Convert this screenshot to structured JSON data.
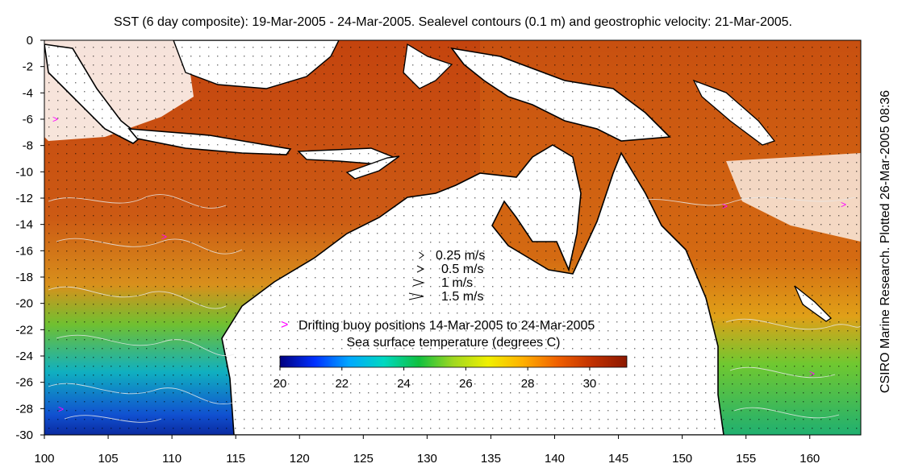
{
  "title": "SST (6 day composite): 19-Mar-2005 - 24-Mar-2005. Sealevel contours (0.1 m) and geostrophic velocity: 21-Mar-2005.",
  "side_credit": "CSIRO Marine Research. Plotted 26-Mar-2005 08:36",
  "map": {
    "lon_range": [
      100,
      164
    ],
    "lat_range": [
      -30,
      0
    ],
    "x_ticks": [
      100,
      105,
      110,
      115,
      120,
      125,
      130,
      135,
      140,
      145,
      150,
      155,
      160
    ],
    "y_ticks": [
      0,
      -2,
      -4,
      -6,
      -8,
      -10,
      -12,
      -14,
      -16,
      -18,
      -20,
      -22,
      -24,
      -26,
      -28,
      -30
    ]
  },
  "velocity_legend": [
    {
      "label": "0.25 m/s",
      "speed": 0.25
    },
    {
      "label": "0.5 m/s",
      "speed": 0.5
    },
    {
      "label": "1 m/s",
      "speed": 1
    },
    {
      "label": "1.5 m/s",
      "speed": 1.5
    }
  ],
  "buoy_legend": {
    "marker": ">",
    "label": "Drifting buoy positions 14-Mar-2005 to 24-Mar-2005",
    "color": "#ff00ff"
  },
  "colorbar": {
    "title": "Sea surface temperature (degrees C)",
    "min": 20,
    "max": 31.2,
    "ticks": [
      20,
      22,
      24,
      26,
      28,
      30
    ],
    "colors": [
      "#00007f",
      "#0030ff",
      "#00a8ff",
      "#00d8c0",
      "#10c040",
      "#a0d820",
      "#f0f000",
      "#ffb000",
      "#f06000",
      "#c03000",
      "#8c1800"
    ]
  },
  "colors": {
    "ocean_warm": "#d05a10",
    "ocean_hot": "#b83c0c",
    "land": "#ffffff",
    "coast": "#000000",
    "contour": "#e8e8e8"
  }
}
